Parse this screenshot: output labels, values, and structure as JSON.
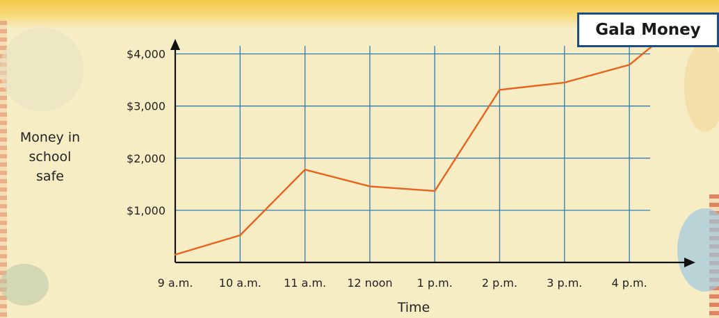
{
  "title": "Gala Money",
  "colors": {
    "line": "#e8621e",
    "grid": "#2f7db0",
    "axis": "#111111",
    "title_border": "#1b4c87"
  },
  "chart_data": {
    "type": "line",
    "title": "Gala Money",
    "xlabel": "Time",
    "ylabel": "Money in\nschool\nsafe",
    "categories": [
      "9 a.m.",
      "10 a.m.",
      "11 a.m.",
      "12 noon",
      "1 p.m.",
      "2 p.m.",
      "3 p.m.",
      "4 p.m."
    ],
    "y_ticks": [
      {
        "value": 1000,
        "label": "$1,000"
      },
      {
        "value": 2000,
        "label": "$2,000"
      },
      {
        "value": 3000,
        "label": "$3,000"
      },
      {
        "value": 4000,
        "label": "$4,000"
      }
    ],
    "series": [
      {
        "values": [
          150,
          520,
          1780,
          1460,
          1370,
          3310,
          3450,
          3790
        ],
        "continues_past_last": 4250
      }
    ],
    "ylim": [
      0,
      4000
    ],
    "grid": true
  }
}
